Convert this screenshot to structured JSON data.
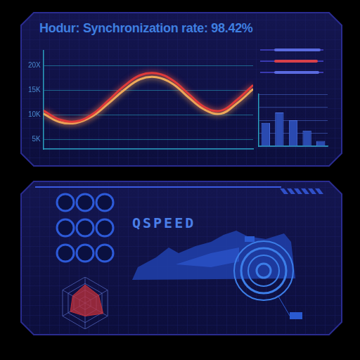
{
  "header": {
    "title": "Hodur: Synchronization rate: 98.42%"
  },
  "chart_data": [
    {
      "type": "line",
      "categories": [
        null,
        null,
        null,
        null,
        null,
        null,
        null,
        null,
        null,
        null,
        null,
        null,
        null,
        null
      ],
      "series": [
        {
          "color": "#e03a3a",
          "values": [
            10800,
            9000,
            8600,
            10000,
            12800,
            15800,
            18000,
            18400,
            17000,
            14200,
            11500,
            10800,
            13000,
            16000
          ]
        },
        {
          "color": "#f0c060",
          "values": [
            10200,
            8500,
            8300,
            9600,
            12200,
            15000,
            17200,
            17600,
            16300,
            13500,
            11000,
            10200,
            12300,
            15200
          ]
        }
      ],
      "ylim": [
        3000,
        23000
      ],
      "yticks": [
        {
          "value": 5000,
          "label": "5K"
        },
        {
          "value": 10000,
          "label": "10K"
        },
        {
          "value": 15000,
          "label": "15K"
        },
        {
          "value": 20000,
          "label": "20X"
        }
      ],
      "grid": true,
      "tick_labels": "y"
    },
    {
      "type": "bar",
      "categories": [
        null,
        null,
        null,
        null,
        null
      ],
      "values": [
        45,
        65,
        50,
        30,
        10
      ],
      "color": "#2a4ab0",
      "ylim": [
        0,
        100
      ],
      "yticks": [
        0,
        25,
        50,
        75,
        100
      ],
      "grid": true,
      "tick_labels": false
    },
    {
      "type": "radar",
      "categories": [
        null,
        null,
        null,
        null,
        null,
        null
      ],
      "values": [
        70,
        60,
        80,
        50,
        65,
        55
      ],
      "color": "#c0303a",
      "ylim": [
        0,
        100
      ],
      "yticks": [
        0,
        25,
        50,
        75,
        100
      ],
      "grid": true,
      "tick_labels": false
    }
  ],
  "lower_panel": {
    "logo": "QSPEED"
  }
}
